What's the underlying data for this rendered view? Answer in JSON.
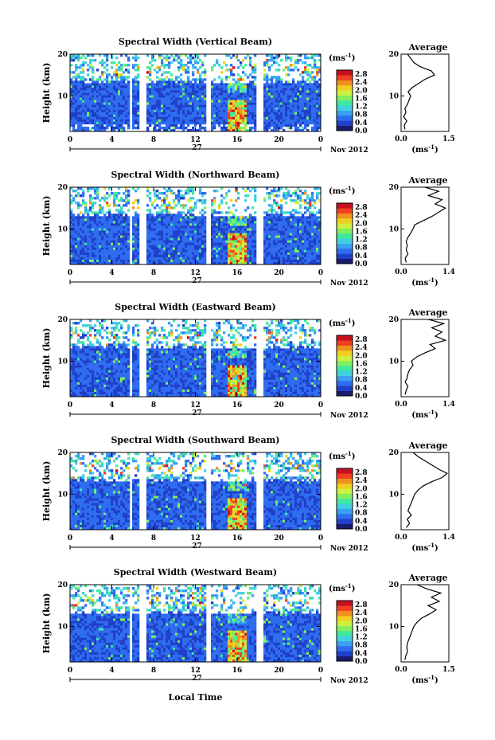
{
  "chart_data": {
    "type": "heatmap",
    "common": {
      "xlabel": "Local Time",
      "x_ticks": [
        "0",
        "4",
        "8",
        "12",
        "16",
        "20",
        "0"
      ],
      "xlim": [
        0,
        24
      ],
      "date_label": "27",
      "month_label": "Nov 2012",
      "ylabel": "Height (km)",
      "y_ticks": [
        "10",
        "20"
      ],
      "ylim": [
        1.5,
        20
      ],
      "colorbar_unit": "(ms",
      "colorbar_unit_exp": "-1",
      "colorbar_unit_close": ")",
      "colorbar_ticks": [
        "2.8",
        "2.4",
        "2.0",
        "1.6",
        "1.2",
        "0.8",
        "0.4",
        "0.0"
      ],
      "colorbar_range": [
        0,
        3.0
      ],
      "average_title": "Average",
      "average_unit": "(ms",
      "average_unit_exp": "-1",
      "average_unit_close": ")",
      "gaps_hours": [
        [
          5.7,
          6.0
        ],
        [
          6.6,
          7.2
        ],
        [
          13.0,
          13.5
        ],
        [
          17.9,
          18.6
        ]
      ],
      "colormap": [
        "#1a1a6e",
        "#2040c8",
        "#2e6cf0",
        "#3aa0f0",
        "#40d0e0",
        "#40e8a0",
        "#80f060",
        "#d0f040",
        "#f0d020",
        "#f09020",
        "#f04020",
        "#c81020"
      ]
    },
    "panels": [
      {
        "title": "Spectral Width (Vertical Beam)",
        "average_ticks": [
          "0.0",
          "1.5"
        ],
        "average_xlim": [
          0,
          1.5
        ],
        "average_profile": [
          [
            0.12,
            2
          ],
          [
            0.1,
            3
          ],
          [
            0.18,
            4
          ],
          [
            0.08,
            5
          ],
          [
            0.15,
            6
          ],
          [
            0.12,
            7
          ],
          [
            0.2,
            8
          ],
          [
            0.25,
            9
          ],
          [
            0.3,
            10
          ],
          [
            0.22,
            11
          ],
          [
            0.35,
            12
          ],
          [
            0.55,
            13
          ],
          [
            0.75,
            14
          ],
          [
            1.05,
            15
          ],
          [
            0.95,
            16
          ],
          [
            0.6,
            17
          ],
          [
            0.4,
            18
          ],
          [
            0.3,
            19
          ],
          [
            0.2,
            20
          ]
        ]
      },
      {
        "title": "Spectral Width (Northward Beam)",
        "average_ticks": [
          "0.0",
          "1.4"
        ],
        "average_xlim": [
          0,
          1.4
        ],
        "average_profile": [
          [
            0.15,
            2
          ],
          [
            0.12,
            3
          ],
          [
            0.2,
            4
          ],
          [
            0.15,
            5
          ],
          [
            0.18,
            6
          ],
          [
            0.15,
            7
          ],
          [
            0.2,
            8
          ],
          [
            0.28,
            9
          ],
          [
            0.35,
            10
          ],
          [
            0.4,
            11
          ],
          [
            0.65,
            12
          ],
          [
            0.9,
            13
          ],
          [
            1.1,
            14
          ],
          [
            1.3,
            15
          ],
          [
            1.0,
            16
          ],
          [
            1.2,
            17
          ],
          [
            0.8,
            18
          ],
          [
            1.1,
            19
          ],
          [
            0.7,
            20
          ]
        ]
      },
      {
        "title": "Spectral Width (Eastward Beam)",
        "average_ticks": [
          "0.0",
          "1.4"
        ],
        "average_xlim": [
          0,
          1.4
        ],
        "average_profile": [
          [
            0.12,
            2
          ],
          [
            0.15,
            3
          ],
          [
            0.2,
            4
          ],
          [
            0.12,
            5
          ],
          [
            0.18,
            6
          ],
          [
            0.2,
            7
          ],
          [
            0.25,
            8
          ],
          [
            0.35,
            9
          ],
          [
            0.3,
            10
          ],
          [
            0.45,
            11
          ],
          [
            0.7,
            12
          ],
          [
            1.0,
            13
          ],
          [
            0.85,
            14
          ],
          [
            1.3,
            15
          ],
          [
            1.0,
            16
          ],
          [
            1.2,
            17
          ],
          [
            0.9,
            18
          ],
          [
            1.25,
            19
          ],
          [
            0.8,
            20
          ]
        ]
      },
      {
        "title": "Spectral Width (Southward Beam)",
        "average_ticks": [
          "0.0",
          "1.4"
        ],
        "average_xlim": [
          0,
          1.4
        ],
        "average_profile": [
          [
            0.15,
            2
          ],
          [
            0.25,
            3
          ],
          [
            0.18,
            4
          ],
          [
            0.3,
            5
          ],
          [
            0.2,
            6
          ],
          [
            0.25,
            7
          ],
          [
            0.3,
            8
          ],
          [
            0.35,
            9
          ],
          [
            0.4,
            10
          ],
          [
            0.5,
            11
          ],
          [
            0.65,
            12
          ],
          [
            0.9,
            13
          ],
          [
            1.2,
            14
          ],
          [
            1.35,
            15
          ],
          [
            1.1,
            16
          ],
          [
            0.9,
            17
          ],
          [
            0.7,
            18
          ],
          [
            0.5,
            19
          ],
          [
            0.35,
            20
          ]
        ]
      },
      {
        "title": "Spectral Width (Westward Beam)",
        "average_ticks": [
          "0.0",
          "1.5"
        ],
        "average_xlim": [
          0,
          1.5
        ],
        "average_profile": [
          [
            0.12,
            2
          ],
          [
            0.15,
            3
          ],
          [
            0.2,
            4
          ],
          [
            0.18,
            5
          ],
          [
            0.2,
            6
          ],
          [
            0.25,
            7
          ],
          [
            0.3,
            8
          ],
          [
            0.35,
            9
          ],
          [
            0.4,
            10
          ],
          [
            0.5,
            11
          ],
          [
            0.65,
            12
          ],
          [
            0.9,
            13
          ],
          [
            1.1,
            14
          ],
          [
            0.85,
            15
          ],
          [
            1.2,
            16
          ],
          [
            0.95,
            17
          ],
          [
            1.25,
            18
          ],
          [
            0.8,
            19
          ],
          [
            0.5,
            20
          ]
        ]
      }
    ]
  }
}
